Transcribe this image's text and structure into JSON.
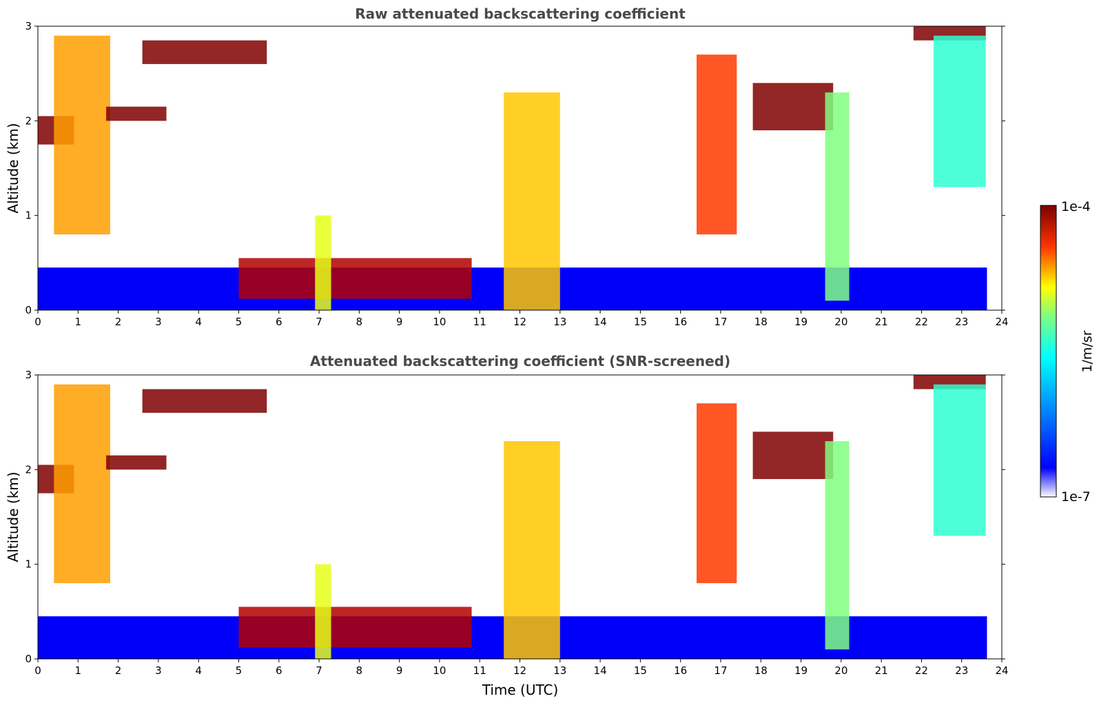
{
  "chart_data": [
    {
      "type": "heatmap",
      "title": "Raw attenuated backscattering coefficient",
      "xlabel": "",
      "ylabel": "Altitude (km)",
      "xlim": [
        0,
        24
      ],
      "ylim": [
        0,
        3
      ],
      "xticks": [
        "0",
        "1",
        "2",
        "3",
        "4",
        "5",
        "6",
        "7",
        "8",
        "9",
        "10",
        "11",
        "12",
        "13",
        "14",
        "15",
        "16",
        "17",
        "18",
        "19",
        "20",
        "21",
        "22",
        "23",
        "24"
      ],
      "yticks": [
        "0",
        "1",
        "2",
        "3"
      ],
      "data_end_time": 23.63,
      "features": [
        {
          "t0": 0.0,
          "t1": 0.9,
          "z0": 1.75,
          "z1": 2.05,
          "level": 1.0
        },
        {
          "t0": 0.4,
          "t1": 1.8,
          "z0": 0.8,
          "z1": 2.9,
          "level": 0.72
        },
        {
          "t0": 1.7,
          "t1": 3.2,
          "z0": 2.0,
          "z1": 2.15,
          "level": 1.0
        },
        {
          "t0": 2.6,
          "t1": 5.7,
          "z0": 2.6,
          "z1": 2.85,
          "level": 1.0
        },
        {
          "t0": 5.0,
          "t1": 10.8,
          "z0": 0.12,
          "z1": 0.55,
          "level": 0.95
        },
        {
          "t0": 6.9,
          "t1": 7.3,
          "z0": 0.0,
          "z1": 1.0,
          "level": 0.6
        },
        {
          "t0": 11.6,
          "t1": 13.0,
          "z0": 0.0,
          "z1": 2.3,
          "level": 0.68
        },
        {
          "t0": 16.4,
          "t1": 17.4,
          "z0": 0.8,
          "z1": 2.7,
          "level": 0.82
        },
        {
          "t0": 17.8,
          "t1": 19.8,
          "z0": 1.9,
          "z1": 2.4,
          "level": 1.0
        },
        {
          "t0": 19.6,
          "t1": 20.2,
          "z0": 0.1,
          "z1": 2.3,
          "level": 0.5
        },
        {
          "t0": 21.8,
          "t1": 23.6,
          "z0": 2.85,
          "z1": 3.0,
          "level": 1.0
        },
        {
          "t0": 22.3,
          "t1": 23.6,
          "z0": 1.3,
          "z1": 2.9,
          "level": 0.42
        }
      ]
    },
    {
      "type": "heatmap",
      "title": "Attenuated backscattering coefficient (SNR-screened)",
      "xlabel": "Time (UTC)",
      "ylabel": "Altitude (km)",
      "xlim": [
        0,
        24
      ],
      "ylim": [
        0,
        3
      ],
      "xticks": [
        "0",
        "1",
        "2",
        "3",
        "4",
        "5",
        "6",
        "7",
        "8",
        "9",
        "10",
        "11",
        "12",
        "13",
        "14",
        "15",
        "16",
        "17",
        "18",
        "19",
        "20",
        "21",
        "22",
        "23",
        "24"
      ],
      "yticks": [
        "0",
        "1",
        "2",
        "3"
      ],
      "data_end_time": 23.63,
      "features": [
        {
          "t0": 0.0,
          "t1": 0.9,
          "z0": 1.75,
          "z1": 2.05,
          "level": 1.0
        },
        {
          "t0": 0.4,
          "t1": 1.8,
          "z0": 0.8,
          "z1": 2.9,
          "level": 0.72
        },
        {
          "t0": 1.7,
          "t1": 3.2,
          "z0": 2.0,
          "z1": 2.15,
          "level": 1.0
        },
        {
          "t0": 2.6,
          "t1": 5.7,
          "z0": 2.6,
          "z1": 2.85,
          "level": 1.0
        },
        {
          "t0": 5.0,
          "t1": 10.8,
          "z0": 0.12,
          "z1": 0.55,
          "level": 0.95
        },
        {
          "t0": 6.9,
          "t1": 7.3,
          "z0": 0.0,
          "z1": 1.0,
          "level": 0.6
        },
        {
          "t0": 11.6,
          "t1": 13.0,
          "z0": 0.0,
          "z1": 2.3,
          "level": 0.68
        },
        {
          "t0": 16.4,
          "t1": 17.4,
          "z0": 0.8,
          "z1": 2.7,
          "level": 0.82
        },
        {
          "t0": 17.8,
          "t1": 19.8,
          "z0": 1.9,
          "z1": 2.4,
          "level": 1.0
        },
        {
          "t0": 19.6,
          "t1": 20.2,
          "z0": 0.1,
          "z1": 2.3,
          "level": 0.5
        },
        {
          "t0": 21.8,
          "t1": 23.6,
          "z0": 2.85,
          "z1": 3.0,
          "level": 1.0
        },
        {
          "t0": 22.3,
          "t1": 23.6,
          "z0": 1.3,
          "z1": 2.9,
          "level": 0.42
        }
      ]
    }
  ],
  "colorbar": {
    "label": "1/m/sr",
    "max_label": "1e-4",
    "min_label": "1e-7",
    "colormap": "jet",
    "colors": [
      "#ffffff",
      "#0000ff",
      "#00ffff",
      "#ffff00",
      "#ff0000",
      "#800000"
    ]
  }
}
